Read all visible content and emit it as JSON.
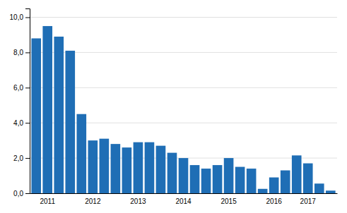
{
  "chart_data": {
    "type": "bar",
    "categories": [
      null,
      "2011",
      null,
      null,
      null,
      "2012",
      null,
      null,
      null,
      "2013",
      null,
      null,
      null,
      "2014",
      null,
      null,
      null,
      "2015",
      null,
      null,
      null,
      "2016",
      null,
      null,
      "2017",
      null,
      null
    ],
    "values": [
      8.8,
      9.5,
      8.9,
      8.1,
      4.5,
      3.0,
      3.1,
      2.8,
      2.6,
      2.9,
      2.9,
      2.7,
      2.3,
      2.0,
      1.6,
      1.4,
      1.6,
      2.0,
      1.5,
      1.4,
      0.25,
      0.9,
      1.3,
      2.15,
      1.7,
      0.55,
      0.15
    ],
    "color": "#1f6eb5",
    "ylim": [
      0,
      10.5
    ],
    "yticks": [
      {
        "value": 0.0,
        "label": "0,0"
      },
      {
        "value": 2.0,
        "label": "2,0"
      },
      {
        "value": 4.0,
        "label": "4,0"
      },
      {
        "value": 6.0,
        "label": "6,0"
      },
      {
        "value": 8.0,
        "label": "8,0"
      },
      {
        "value": 10.0,
        "label": "10,0"
      }
    ],
    "grid": true
  }
}
